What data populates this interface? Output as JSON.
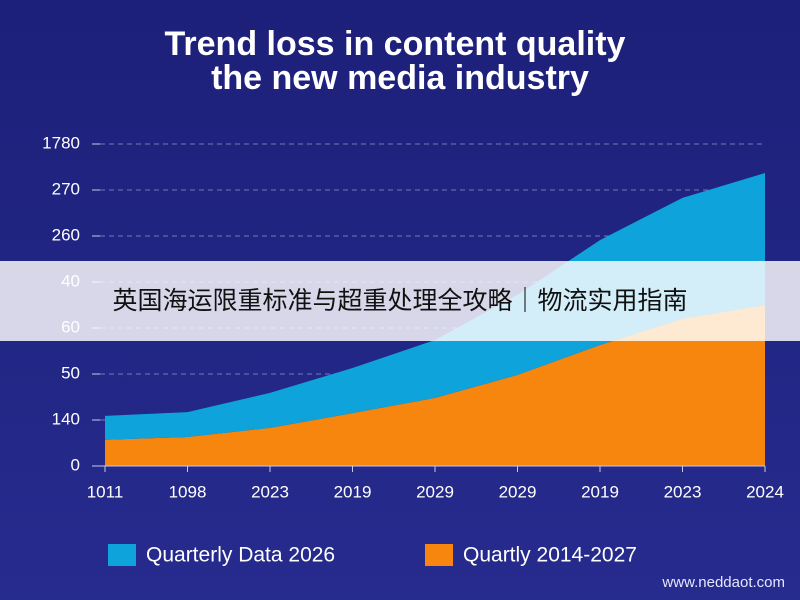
{
  "chart_data": {
    "type": "area",
    "stacked": true,
    "title": [
      "Trend loss in content quality",
      "the new media industry"
    ],
    "categories": [
      "1011",
      "1098",
      "2023",
      "2019",
      "2029",
      "2029",
      "2019",
      "2023",
      "2024"
    ],
    "series": [
      {
        "name": "Quartly 2014‑2027",
        "color": "#f7860f",
        "values": [
          0.57,
          0.63,
          0.83,
          1.15,
          1.48,
          1.98,
          2.63,
          3.2,
          3.5
        ]
      },
      {
        "name": "Quarterly Data 2026",
        "color": "#0fa3dc",
        "values": [
          0.52,
          0.54,
          0.76,
          0.98,
          1.26,
          1.74,
          2.28,
          2.63,
          2.87
        ]
      }
    ],
    "ylim": [
      0,
      7
    ],
    "yticks": [
      0,
      {
        "value": 1,
        "label": "140"
      },
      {
        "value": 2,
        "label": "50"
      },
      {
        "value": 3,
        "label": "60"
      },
      {
        "value": 4,
        "label": "40"
      },
      {
        "value": 5,
        "label": "260"
      },
      {
        "value": 6,
        "label": "270"
      },
      {
        "value": 7,
        "label": "1780"
      }
    ],
    "grid": true,
    "legend": "bottom"
  },
  "banner": {
    "text": "英国海运限重标准与超重处理全攻略｜物流实用指南"
  },
  "watermark": "www.neddaot.com"
}
